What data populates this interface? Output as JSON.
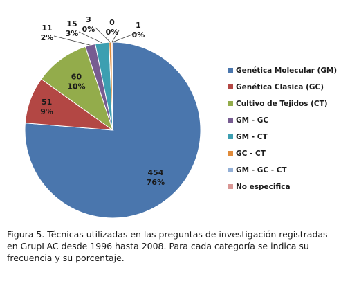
{
  "chart_data": {
    "type": "pie",
    "categories": [
      "Genética Molecular (GM)",
      "Genética Clasica (GC)",
      "Cultivo de Tejidos (CT)",
      "GM - GC",
      "GM - CT",
      "GC - CT",
      "GM - GC - CT",
      "No especifica"
    ],
    "values": [
      454,
      51,
      60,
      11,
      15,
      3,
      0,
      1
    ],
    "percent_labels": [
      "76%",
      "9%",
      "10%",
      "2%",
      "3%",
      "0%",
      "0%",
      "0%"
    ],
    "colors": [
      "#4a76ad",
      "#b34744",
      "#93ac4b",
      "#775c91",
      "#3d9fb1",
      "#e08b3a",
      "#93afd6",
      "#d99694"
    ],
    "legend_position": "right"
  },
  "caption": "Figura 5. Técnicas utilizadas en las preguntas de investigación registradas en GrupLAC desde 1996 hasta 2008. Para cada categoría se indica su frecuencia y su porcentaje."
}
